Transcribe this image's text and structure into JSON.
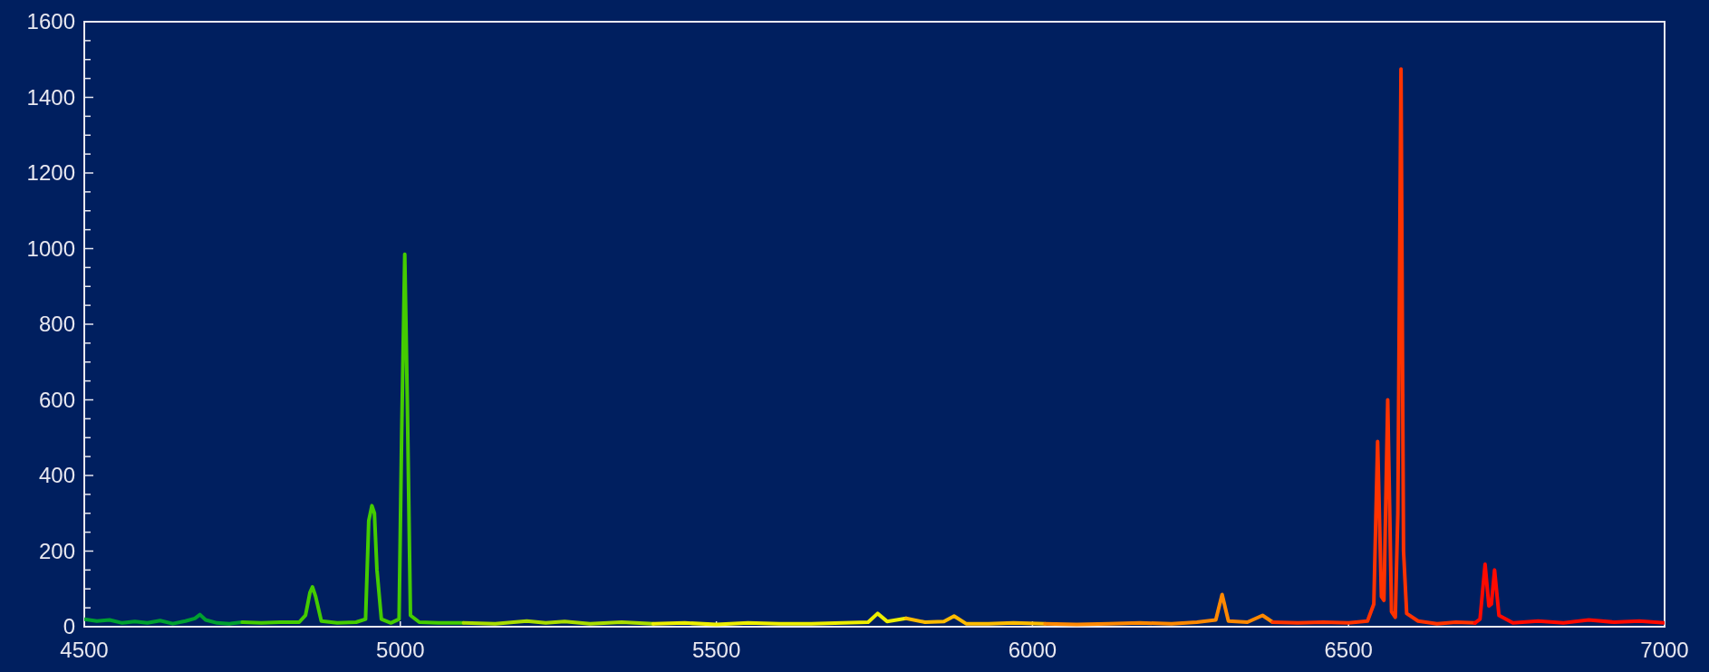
{
  "chart_data": {
    "type": "line",
    "xlim": [
      4500,
      7000
    ],
    "xticks": [
      4500,
      5000,
      5500,
      6000,
      6500,
      7000
    ],
    "ylim": [
      0,
      1600
    ],
    "yticks": [
      0,
      200,
      400,
      600,
      800,
      1000,
      1200,
      1400,
      1600
    ],
    "grid": false,
    "marker": "none",
    "line_style": "solid",
    "series": [
      {
        "color": "#00a030",
        "x": [
          4500,
          4520,
          4540,
          4560,
          4580,
          4600,
          4620,
          4640,
          4660,
          4675,
          4683,
          4692,
          4710,
          4730,
          4750
        ],
        "values": [
          20,
          15,
          18,
          10,
          14,
          10,
          16,
          8,
          15,
          22,
          32,
          18,
          10,
          8,
          12
        ]
      },
      {
        "color": "#44cc00",
        "x": [
          4750,
          4780,
          4810,
          4840,
          4850,
          4857,
          4861,
          4866,
          4875,
          4900,
          4930,
          4945,
          4950,
          4955,
          4959,
          4963,
          4970,
          4985,
          4998,
          5002,
          5007,
          5011,
          5016,
          5030,
          5060,
          5100
        ],
        "values": [
          12,
          10,
          12,
          12,
          30,
          90,
          105,
          80,
          15,
          10,
          12,
          20,
          280,
          320,
          300,
          150,
          20,
          10,
          20,
          500,
          985,
          600,
          30,
          12,
          10,
          10
        ]
      },
      {
        "color": "#aadd00",
        "x": [
          5100,
          5150,
          5200,
          5230,
          5260,
          5300,
          5350,
          5400
        ],
        "values": [
          10,
          8,
          15,
          10,
          14,
          8,
          12,
          8
        ]
      },
      {
        "color": "#eeee00",
        "x": [
          5400,
          5450,
          5500,
          5550,
          5600,
          5650,
          5700,
          5740,
          5755,
          5770,
          5800
        ],
        "values": [
          8,
          10,
          6,
          10,
          8,
          8,
          10,
          12,
          35,
          14,
          22
        ]
      },
      {
        "color": "#ffbb00",
        "x": [
          5800,
          5830,
          5860,
          5876,
          5895,
          5930,
          5970,
          6020
        ],
        "values": [
          22,
          12,
          14,
          28,
          8,
          8,
          10,
          8
        ]
      },
      {
        "color": "#ff8800",
        "x": [
          6020,
          6070,
          6120,
          6170,
          6220,
          6260,
          6290,
          6300,
          6310,
          6340,
          6364,
          6380
        ],
        "values": [
          8,
          6,
          8,
          10,
          8,
          12,
          18,
          85,
          15,
          12,
          30,
          12
        ]
      },
      {
        "color": "#ff3300",
        "x": [
          6380,
          6420,
          6460,
          6500,
          6530,
          6540,
          6546,
          6552,
          6556,
          6562,
          6568,
          6574,
          6578,
          6583,
          6587,
          6592,
          6610,
          6640,
          6670,
          6700
        ],
        "values": [
          12,
          10,
          12,
          10,
          15,
          60,
          490,
          80,
          70,
          600,
          40,
          25,
          300,
          1475,
          200,
          35,
          15,
          8,
          12,
          10
        ]
      },
      {
        "color": "#ff0a00",
        "x": [
          6700,
          6708,
          6716,
          6722,
          6726,
          6731,
          6738,
          6760,
          6800,
          6840,
          6880,
          6920,
          6960,
          7000
        ],
        "values": [
          10,
          20,
          165,
          55,
          60,
          150,
          30,
          10,
          15,
          10,
          18,
          12,
          15,
          10
        ]
      }
    ]
  }
}
